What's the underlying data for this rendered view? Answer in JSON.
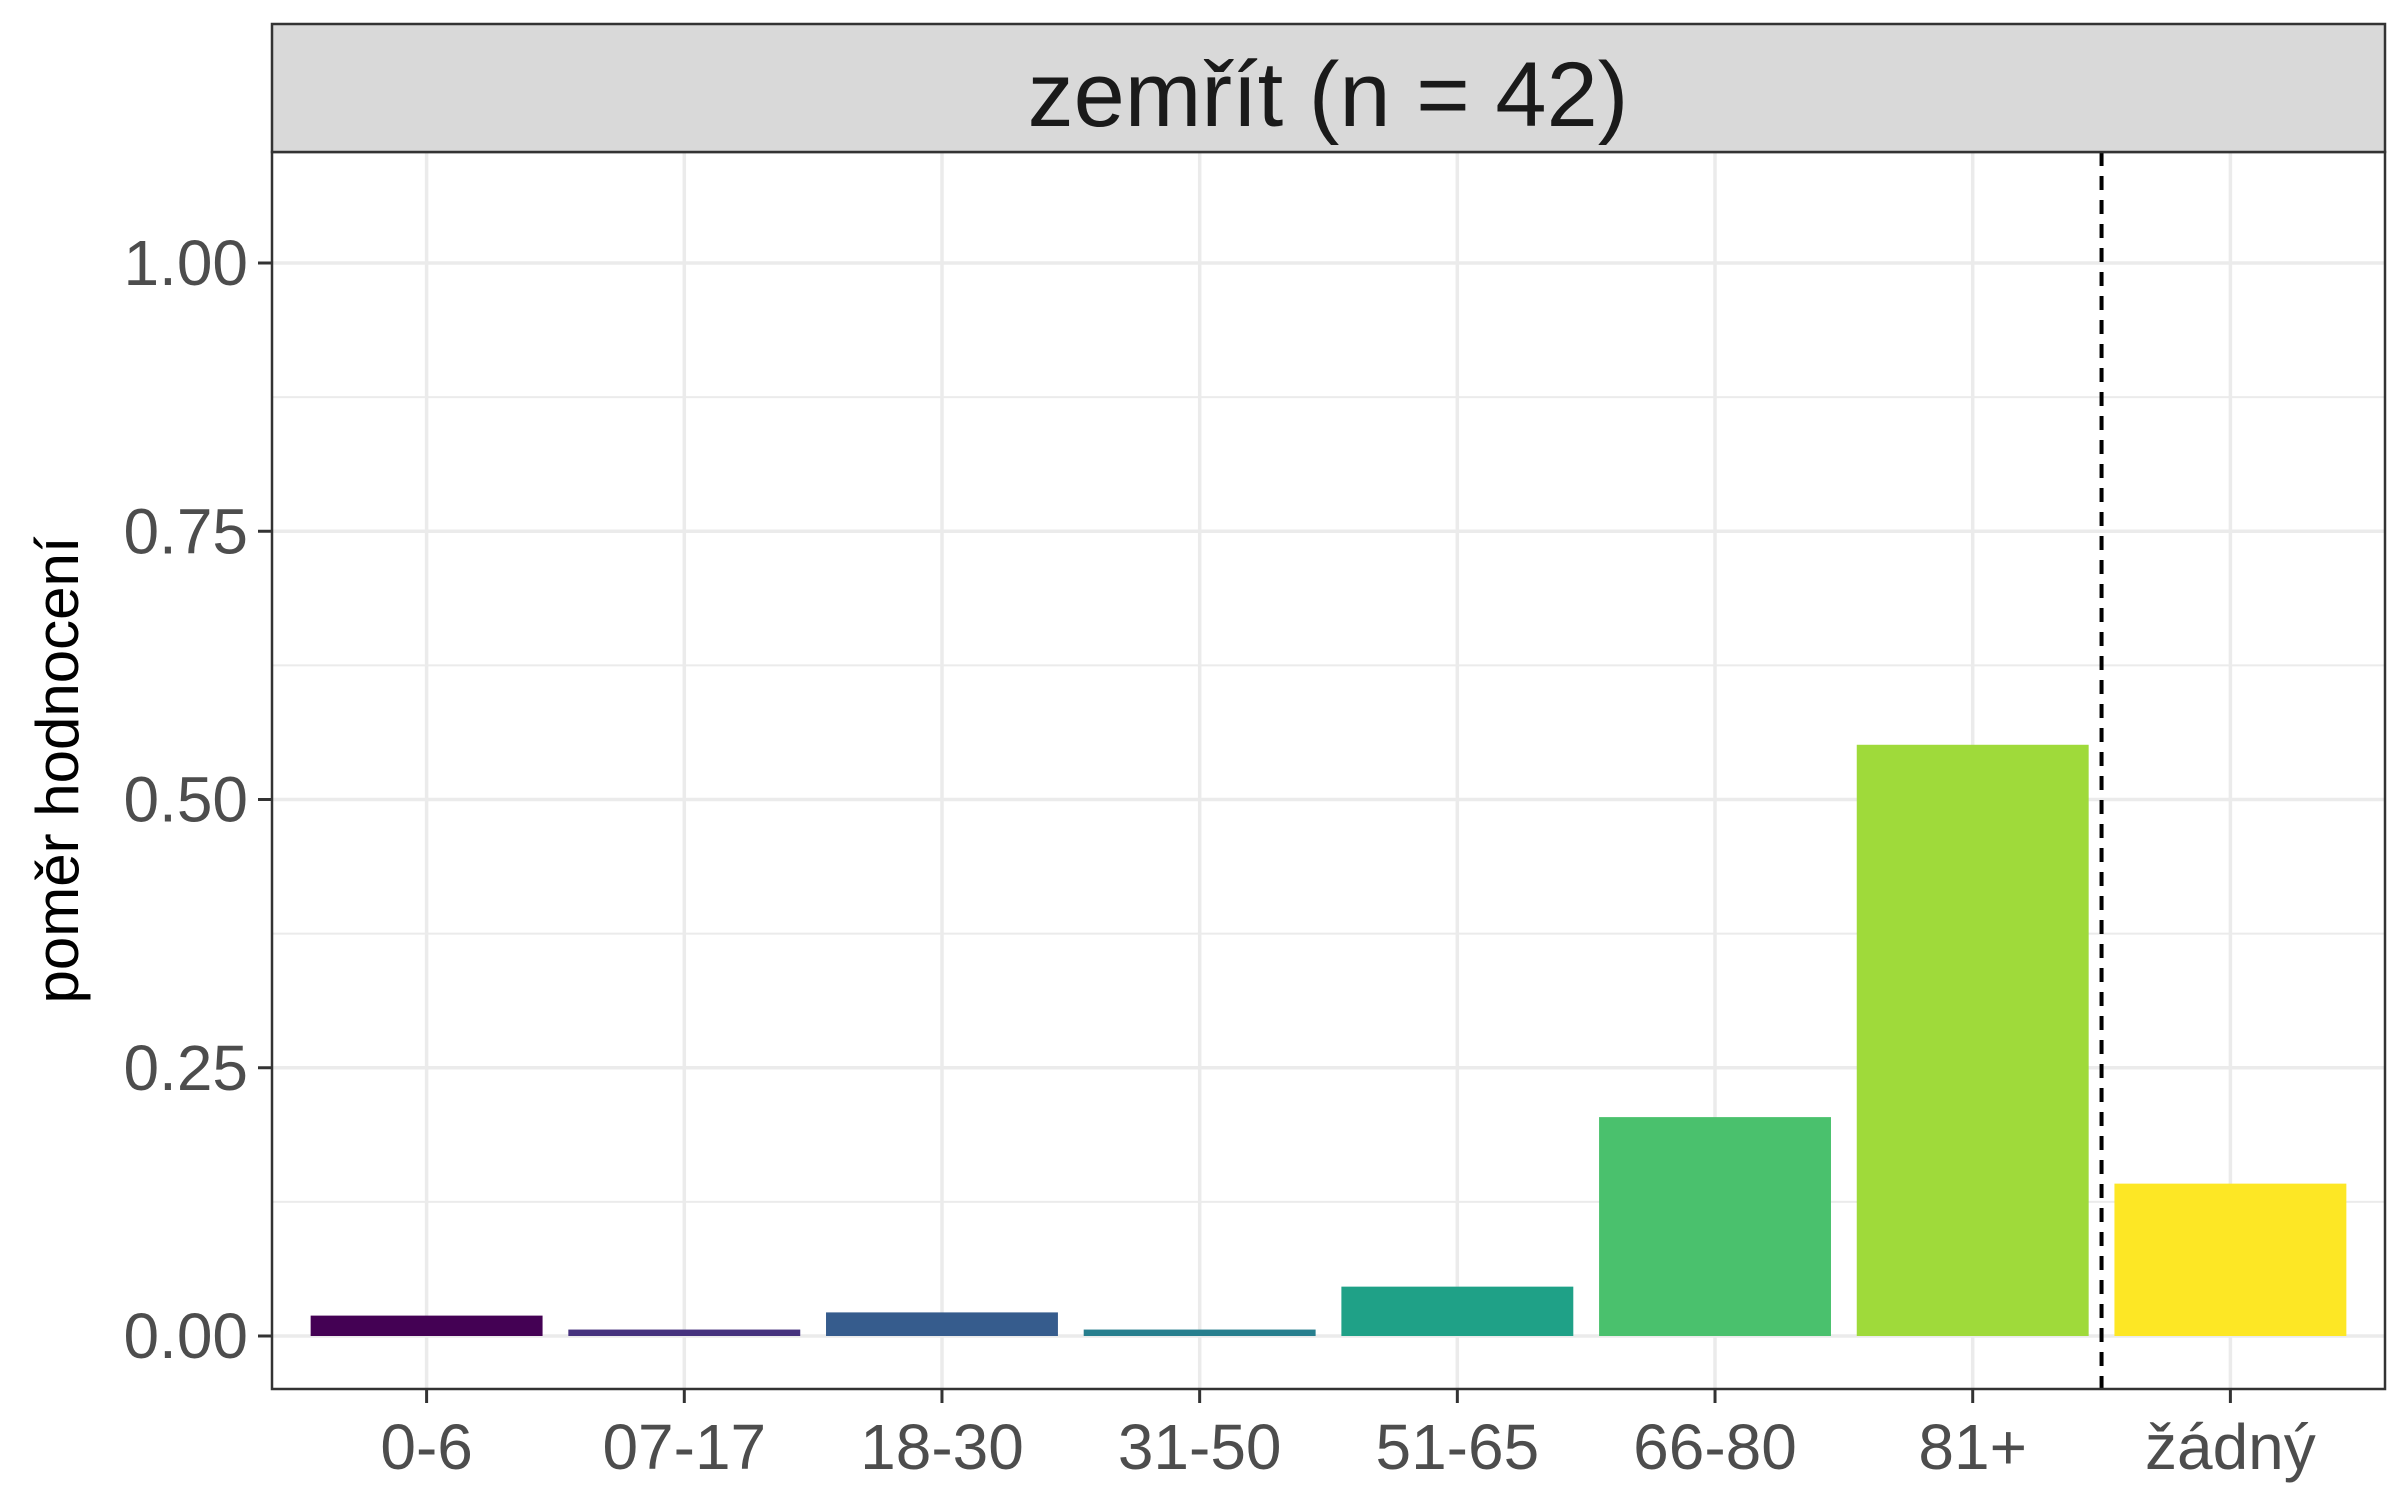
{
  "chart_data": {
    "type": "bar",
    "title": "zemřít (n = 42)",
    "xlabel": "",
    "ylabel": "poměr hodnocení",
    "categories": [
      "0-6",
      "07-17",
      "18-30",
      "31-50",
      "51-65",
      "66-80",
      "81+",
      "žádný"
    ],
    "values": [
      0.019,
      0.006,
      0.022,
      0.006,
      0.046,
      0.204,
      0.551,
      0.142
    ],
    "colors": [
      "#440154",
      "#46327E",
      "#365C8D",
      "#277F8E",
      "#1FA187",
      "#4AC16D",
      "#9FDA3A",
      "#FDE725"
    ],
    "ylim": [
      -0.045,
      1.1
    ],
    "yticks": [
      "0.00",
      "0.25",
      "0.50",
      "0.75",
      "1.00"
    ],
    "grid": true,
    "legend": "none",
    "reference_line": {
      "between": [
        "81+",
        "žádný"
      ],
      "style": "dashed"
    }
  }
}
